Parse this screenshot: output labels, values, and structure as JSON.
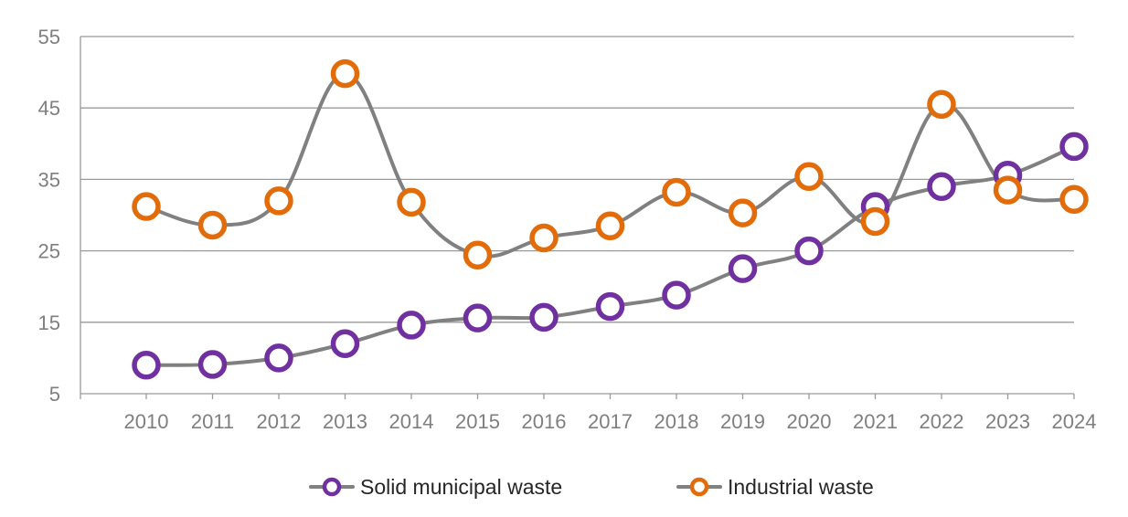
{
  "chart_data": {
    "type": "line",
    "title": "",
    "xlabel": "",
    "ylabel": "",
    "categories": [
      "2010",
      "2011",
      "2012",
      "2013",
      "2014",
      "2015",
      "2016",
      "2017",
      "2018",
      "2019",
      "2020",
      "2021",
      "2022",
      "2023",
      "2024"
    ],
    "ylim": [
      5,
      55
    ],
    "yticks": [
      5,
      15,
      25,
      35,
      45,
      55
    ],
    "grid": true,
    "legend_position": "bottom",
    "line_color": "#808080",
    "series": [
      {
        "name": "Solid municipal waste",
        "color": "#7030a0",
        "values": [
          9.0,
          9.1,
          10.0,
          12.0,
          14.6,
          15.6,
          15.7,
          17.2,
          18.8,
          22.5,
          25.0,
          31.2,
          34.0,
          35.6,
          39.6
        ]
      },
      {
        "name": "Industrial waste",
        "color": "#e36c0a",
        "values": [
          31.2,
          28.6,
          32.0,
          49.8,
          31.8,
          24.4,
          26.8,
          28.5,
          33.2,
          30.3,
          35.4,
          29.1,
          45.5,
          33.5,
          32.2
        ]
      }
    ]
  }
}
